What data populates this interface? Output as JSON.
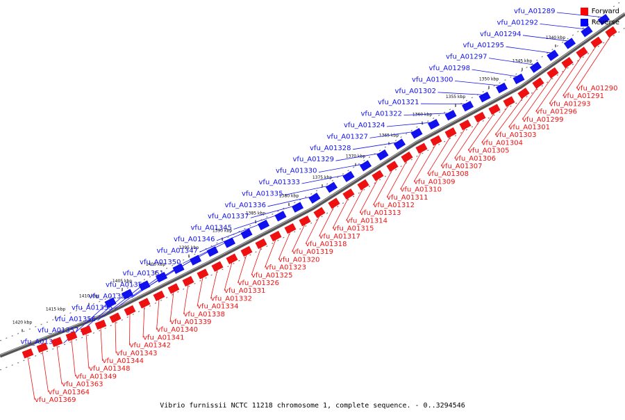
{
  "caption": "Vibrio furnissii NCTC 11218 chromosome 1, complete sequence. - 0..3294546",
  "legend": [
    {
      "label": "Forward",
      "color": "#ff0000"
    },
    {
      "label": "Reverse",
      "color": "#0000ff"
    }
  ],
  "colors": {
    "forward": "#ee1111",
    "reverse": "#1111ee",
    "backbone": "#555555"
  },
  "kbp_ticks": [
    "1340 kbp",
    "1345 kbp",
    "1350 kbp",
    "1355 kbp",
    "1360 kbp",
    "1365 kbp",
    "1370 kbp",
    "1375 kbp",
    "1380 kbp",
    "1385 kbp",
    "1390 kbp",
    "1395 kbp",
    "1400 kbp",
    "1405 kbp",
    "1410 kbp",
    "1415 kbp",
    "1420 kbp"
  ],
  "reverse_genes": [
    "vfu_A01289",
    "vfu_A01292",
    "vfu_A01294",
    "vfu_A01295",
    "vfu_A01297",
    "vfu_A01298",
    "vfu_A01300",
    "vfu_A01302",
    "vfu_A01321",
    "vfu_A01322",
    "vfu_A01324",
    "vfu_A01327",
    "vfu_A01328",
    "vfu_A01329",
    "vfu_A01330",
    "vfu_A01333",
    "vfu_A01335",
    "vfu_A01336",
    "vfu_A01337",
    "vfu_A01345",
    "vfu_A01346",
    "vfu_A01347",
    "vfu_A01350",
    "vfu_A01351",
    "vfu_A01352",
    "vfu_A01353",
    "vfu_A01355",
    "vfu_A01356",
    "vfu_A01357",
    "vfu_A01358"
  ],
  "forward_genes": [
    "vfu_A01290",
    "vfu_A01291",
    "vfu_A01293",
    "vfu_A01296",
    "vfu_A01299",
    "vfu_A01301",
    "vfu_A01303",
    "vfu_A01304",
    "vfu_A01305",
    "vfu_A01306",
    "vfu_A01307",
    "vfu_A01308",
    "vfu_A01309",
    "vfu_A01310",
    "vfu_A01311",
    "vfu_A01312",
    "vfu_A01313",
    "vfu_A01314",
    "vfu_A01315",
    "vfu_A01317",
    "vfu_A01318",
    "vfu_A01319",
    "vfu_A01320",
    "vfu_A01323",
    "vfu_A01325",
    "vfu_A01326",
    "vfu_A01331",
    "vfu_A01332",
    "vfu_A01334",
    "vfu_A01338",
    "vfu_A01339",
    "vfu_A01340",
    "vfu_A01341",
    "vfu_A01342",
    "vfu_A01343",
    "vfu_A01344",
    "vfu_A01348",
    "vfu_A01349",
    "vfu_A01363",
    "vfu_A01364",
    "vfu_A01369"
  ]
}
